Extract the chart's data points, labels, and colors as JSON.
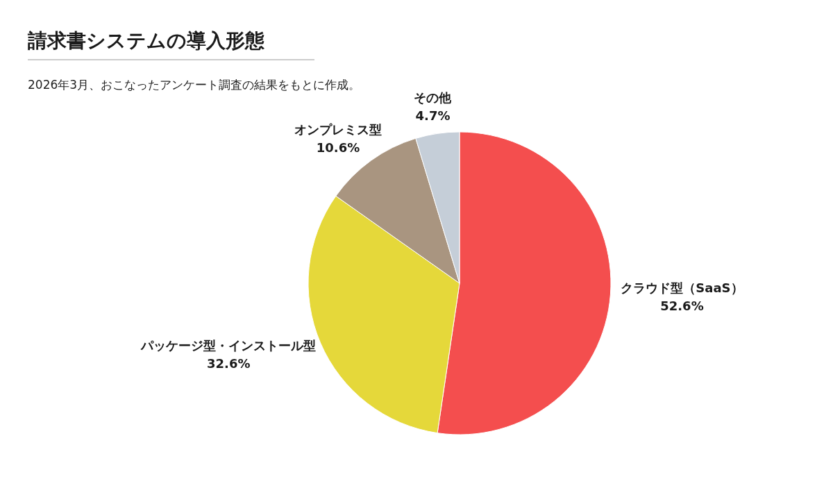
{
  "chart_data": {
    "type": "pie",
    "title": "請求書システムの導入形態",
    "subtitle": "2026年3月、おこなったアンケート調査の結果をもとに作成。",
    "categories": [
      "クラウド型（SaaS）",
      "パッケージ型・インストール型",
      "オンプレミス型",
      "その他"
    ],
    "values": [
      52.6,
      32.6,
      10.6,
      4.7
    ],
    "colors": [
      "#f44e4e",
      "#e5d83a",
      "#a99580",
      "#c5ced8"
    ],
    "value_labels": [
      "52.6%",
      "32.6%",
      "10.6%",
      "4.7%"
    ]
  }
}
